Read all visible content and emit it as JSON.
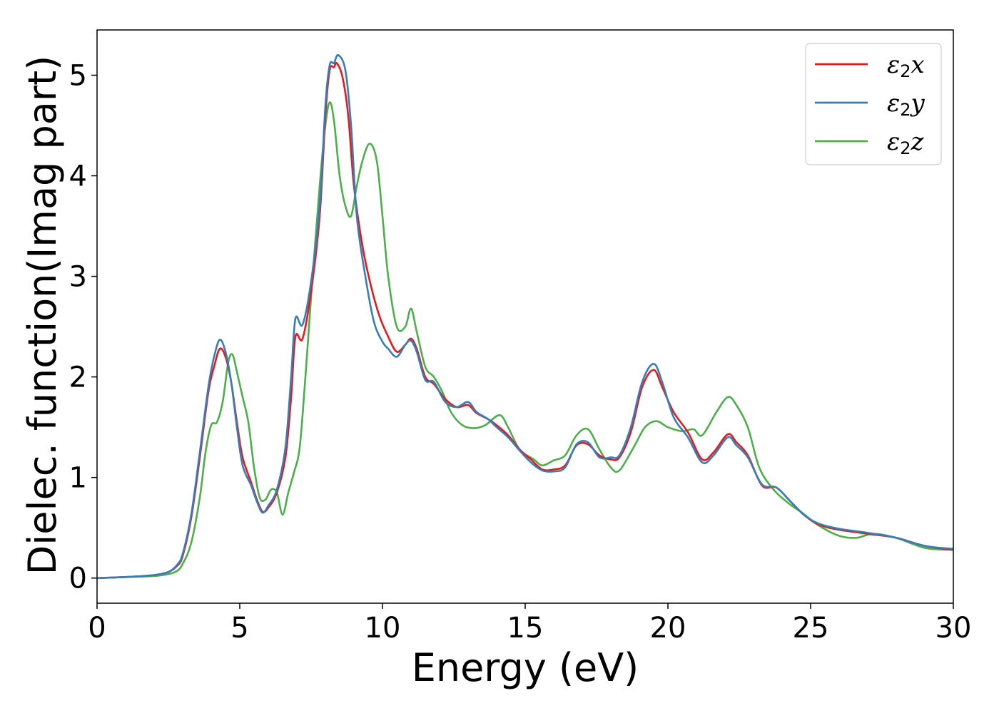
{
  "chart_data": {
    "type": "line",
    "xlabel": "Energy (eV)",
    "ylabel": "Dielec. function(Imag part)",
    "xlim": [
      0,
      30
    ],
    "ylim": [
      -0.25,
      5.45
    ],
    "xticks": [
      "0",
      "5",
      "10",
      "15",
      "20",
      "25",
      "30"
    ],
    "yticks": [
      "0",
      "1",
      "2",
      "3",
      "4",
      "5"
    ],
    "grid": false,
    "legend_position": "top-right",
    "series": [
      {
        "name": "ε2x",
        "symbol": "ε",
        "subscript": "2",
        "suffix": "x",
        "color": "#e41a1c",
        "points": [
          [
            0,
            0
          ],
          [
            1,
            0.01
          ],
          [
            2,
            0.03
          ],
          [
            2.5,
            0.06
          ],
          [
            2.8,
            0.12
          ],
          [
            3.0,
            0.22
          ],
          [
            3.3,
            0.6
          ],
          [
            3.6,
            1.2
          ],
          [
            3.9,
            1.85
          ],
          [
            4.1,
            2.1
          ],
          [
            4.3,
            2.28
          ],
          [
            4.5,
            2.2
          ],
          [
            4.7,
            1.95
          ],
          [
            4.9,
            1.55
          ],
          [
            5.1,
            1.2
          ],
          [
            5.4,
            0.95
          ],
          [
            5.6,
            0.78
          ],
          [
            5.8,
            0.66
          ],
          [
            6.0,
            0.7
          ],
          [
            6.3,
            0.85
          ],
          [
            6.6,
            1.2
          ],
          [
            6.8,
            1.8
          ],
          [
            6.95,
            2.4
          ],
          [
            7.2,
            2.38
          ],
          [
            7.5,
            2.85
          ],
          [
            7.8,
            3.6
          ],
          [
            8.0,
            4.6
          ],
          [
            8.15,
            5.05
          ],
          [
            8.3,
            5.08
          ],
          [
            8.4,
            5.12
          ],
          [
            8.6,
            4.98
          ],
          [
            8.8,
            4.6
          ],
          [
            9.0,
            3.9
          ],
          [
            9.3,
            3.3
          ],
          [
            9.6,
            2.9
          ],
          [
            9.9,
            2.6
          ],
          [
            10.2,
            2.4
          ],
          [
            10.5,
            2.25
          ],
          [
            10.8,
            2.32
          ],
          [
            11.0,
            2.38
          ],
          [
            11.2,
            2.28
          ],
          [
            11.5,
            2.0
          ],
          [
            11.8,
            1.93
          ],
          [
            12.2,
            1.78
          ],
          [
            12.6,
            1.7
          ],
          [
            13.0,
            1.72
          ],
          [
            13.3,
            1.64
          ],
          [
            13.7,
            1.58
          ],
          [
            14.0,
            1.52
          ],
          [
            14.4,
            1.42
          ],
          [
            14.8,
            1.28
          ],
          [
            15.2,
            1.18
          ],
          [
            15.6,
            1.08
          ],
          [
            16.0,
            1.08
          ],
          [
            16.4,
            1.12
          ],
          [
            16.8,
            1.32
          ],
          [
            17.2,
            1.33
          ],
          [
            17.6,
            1.22
          ],
          [
            18.0,
            1.18
          ],
          [
            18.3,
            1.2
          ],
          [
            18.7,
            1.45
          ],
          [
            19.1,
            1.9
          ],
          [
            19.5,
            2.07
          ],
          [
            19.8,
            1.9
          ],
          [
            20.2,
            1.65
          ],
          [
            20.7,
            1.45
          ],
          [
            21.2,
            1.18
          ],
          [
            21.6,
            1.25
          ],
          [
            22.1,
            1.43
          ],
          [
            22.4,
            1.35
          ],
          [
            22.8,
            1.22
          ],
          [
            23.3,
            0.92
          ],
          [
            23.8,
            0.9
          ],
          [
            24.3,
            0.76
          ],
          [
            24.8,
            0.62
          ],
          [
            25.3,
            0.53
          ],
          [
            26.0,
            0.48
          ],
          [
            27.0,
            0.44
          ],
          [
            28.0,
            0.4
          ],
          [
            29.0,
            0.32
          ],
          [
            30,
            0.28
          ]
        ]
      },
      {
        "name": "ε2y",
        "symbol": "ε",
        "subscript": "2",
        "suffix": "y",
        "color": "#377eb8",
        "points": [
          [
            0,
            0
          ],
          [
            1,
            0.01
          ],
          [
            2,
            0.03
          ],
          [
            2.5,
            0.06
          ],
          [
            2.8,
            0.13
          ],
          [
            3.0,
            0.24
          ],
          [
            3.3,
            0.63
          ],
          [
            3.6,
            1.25
          ],
          [
            3.9,
            1.9
          ],
          [
            4.1,
            2.2
          ],
          [
            4.3,
            2.37
          ],
          [
            4.5,
            2.25
          ],
          [
            4.7,
            1.95
          ],
          [
            4.9,
            1.5
          ],
          [
            5.1,
            1.12
          ],
          [
            5.4,
            0.92
          ],
          [
            5.6,
            0.76
          ],
          [
            5.8,
            0.65
          ],
          [
            6.0,
            0.72
          ],
          [
            6.3,
            0.88
          ],
          [
            6.6,
            1.3
          ],
          [
            6.8,
            2.0
          ],
          [
            6.95,
            2.58
          ],
          [
            7.2,
            2.52
          ],
          [
            7.5,
            2.95
          ],
          [
            7.8,
            3.7
          ],
          [
            8.0,
            4.7
          ],
          [
            8.15,
            5.1
          ],
          [
            8.3,
            5.12
          ],
          [
            8.45,
            5.2
          ],
          [
            8.7,
            5.05
          ],
          [
            8.9,
            4.5
          ],
          [
            9.1,
            3.6
          ],
          [
            9.4,
            3.0
          ],
          [
            9.7,
            2.55
          ],
          [
            10.0,
            2.35
          ],
          [
            10.2,
            2.28
          ],
          [
            10.5,
            2.2
          ],
          [
            10.8,
            2.32
          ],
          [
            11.0,
            2.36
          ],
          [
            11.2,
            2.25
          ],
          [
            11.5,
            1.97
          ],
          [
            11.8,
            1.95
          ],
          [
            12.2,
            1.75
          ],
          [
            12.6,
            1.7
          ],
          [
            13.0,
            1.75
          ],
          [
            13.3,
            1.65
          ],
          [
            13.7,
            1.58
          ],
          [
            14.0,
            1.5
          ],
          [
            14.4,
            1.4
          ],
          [
            14.8,
            1.27
          ],
          [
            15.2,
            1.15
          ],
          [
            15.6,
            1.07
          ],
          [
            16.0,
            1.06
          ],
          [
            16.4,
            1.1
          ],
          [
            16.8,
            1.33
          ],
          [
            17.2,
            1.35
          ],
          [
            17.6,
            1.2
          ],
          [
            18.0,
            1.2
          ],
          [
            18.3,
            1.22
          ],
          [
            18.7,
            1.5
          ],
          [
            19.1,
            1.95
          ],
          [
            19.5,
            2.13
          ],
          [
            19.8,
            1.95
          ],
          [
            20.2,
            1.6
          ],
          [
            20.7,
            1.4
          ],
          [
            21.2,
            1.15
          ],
          [
            21.6,
            1.22
          ],
          [
            22.1,
            1.4
          ],
          [
            22.4,
            1.32
          ],
          [
            22.8,
            1.2
          ],
          [
            23.3,
            0.93
          ],
          [
            23.8,
            0.9
          ],
          [
            24.3,
            0.76
          ],
          [
            24.8,
            0.62
          ],
          [
            25.3,
            0.54
          ],
          [
            26.0,
            0.49
          ],
          [
            27.0,
            0.45
          ],
          [
            28.0,
            0.4
          ],
          [
            29.0,
            0.32
          ],
          [
            30,
            0.29
          ]
        ]
      },
      {
        "name": "ε2z",
        "symbol": "ε",
        "subscript": "2",
        "suffix": "z",
        "color": "#4daf4a",
        "points": [
          [
            0,
            0
          ],
          [
            1,
            0.01
          ],
          [
            2,
            0.02
          ],
          [
            2.5,
            0.04
          ],
          [
            2.8,
            0.07
          ],
          [
            3.0,
            0.14
          ],
          [
            3.3,
            0.35
          ],
          [
            3.6,
            0.8
          ],
          [
            3.8,
            1.25
          ],
          [
            4.0,
            1.52
          ],
          [
            4.2,
            1.55
          ],
          [
            4.4,
            1.75
          ],
          [
            4.6,
            2.15
          ],
          [
            4.75,
            2.22
          ],
          [
            4.9,
            2.05
          ],
          [
            5.1,
            1.8
          ],
          [
            5.3,
            1.55
          ],
          [
            5.5,
            1.1
          ],
          [
            5.7,
            0.8
          ],
          [
            5.9,
            0.78
          ],
          [
            6.1,
            0.88
          ],
          [
            6.3,
            0.85
          ],
          [
            6.5,
            0.63
          ],
          [
            6.7,
            0.85
          ],
          [
            6.9,
            1.05
          ],
          [
            7.1,
            1.3
          ],
          [
            7.3,
            2.0
          ],
          [
            7.5,
            2.8
          ],
          [
            7.8,
            3.9
          ],
          [
            8.0,
            4.5
          ],
          [
            8.15,
            4.73
          ],
          [
            8.3,
            4.55
          ],
          [
            8.5,
            4.0
          ],
          [
            8.7,
            3.7
          ],
          [
            8.9,
            3.6
          ],
          [
            9.1,
            3.9
          ],
          [
            9.3,
            4.15
          ],
          [
            9.55,
            4.32
          ],
          [
            9.8,
            4.15
          ],
          [
            10.0,
            3.6
          ],
          [
            10.2,
            3.0
          ],
          [
            10.5,
            2.5
          ],
          [
            10.8,
            2.5
          ],
          [
            11.0,
            2.68
          ],
          [
            11.2,
            2.45
          ],
          [
            11.5,
            2.1
          ],
          [
            11.8,
            2.0
          ],
          [
            12.1,
            1.85
          ],
          [
            12.4,
            1.65
          ],
          [
            12.8,
            1.52
          ],
          [
            13.2,
            1.49
          ],
          [
            13.6,
            1.52
          ],
          [
            14.1,
            1.62
          ],
          [
            14.4,
            1.5
          ],
          [
            14.8,
            1.28
          ],
          [
            15.3,
            1.18
          ],
          [
            15.6,
            1.12
          ],
          [
            16.0,
            1.17
          ],
          [
            16.4,
            1.22
          ],
          [
            16.8,
            1.42
          ],
          [
            17.2,
            1.48
          ],
          [
            17.6,
            1.28
          ],
          [
            18.0,
            1.1
          ],
          [
            18.3,
            1.07
          ],
          [
            18.8,
            1.3
          ],
          [
            19.2,
            1.5
          ],
          [
            19.6,
            1.56
          ],
          [
            20.0,
            1.5
          ],
          [
            20.5,
            1.46
          ],
          [
            20.9,
            1.48
          ],
          [
            21.2,
            1.42
          ],
          [
            21.7,
            1.65
          ],
          [
            22.1,
            1.8
          ],
          [
            22.4,
            1.72
          ],
          [
            22.8,
            1.5
          ],
          [
            23.2,
            1.1
          ],
          [
            23.7,
            0.88
          ],
          [
            24.2,
            0.75
          ],
          [
            24.7,
            0.65
          ],
          [
            25.3,
            0.52
          ],
          [
            26.0,
            0.42
          ],
          [
            26.6,
            0.4
          ],
          [
            27.2,
            0.44
          ],
          [
            28.0,
            0.4
          ],
          [
            29.0,
            0.3
          ],
          [
            30,
            0.28
          ]
        ]
      }
    ]
  }
}
